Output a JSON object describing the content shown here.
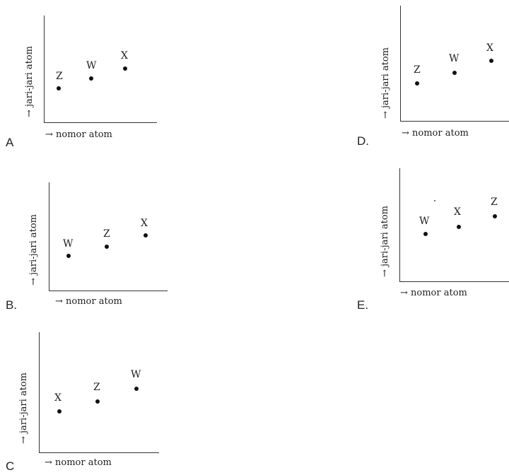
{
  "x_axis_label": "→ nomor atom",
  "y_axis_label": "→ jari-jari atom",
  "panels": [
    {
      "id": "A",
      "letter": "A",
      "points": [
        {
          "label": "Z"
        },
        {
          "label": "W"
        },
        {
          "label": "X"
        }
      ]
    },
    {
      "id": "B",
      "letter": "B.",
      "points": [
        {
          "label": "W"
        },
        {
          "label": "Z"
        },
        {
          "label": "X"
        }
      ]
    },
    {
      "id": "C",
      "letter": "C",
      "points": [
        {
          "label": "X"
        },
        {
          "label": "Z"
        },
        {
          "label": "W"
        }
      ]
    },
    {
      "id": "D",
      "letter": "D.",
      "points": [
        {
          "label": "Z"
        },
        {
          "label": "W"
        },
        {
          "label": "X"
        }
      ]
    },
    {
      "id": "E",
      "letter": "E.",
      "points": [
        {
          "label": "W"
        },
        {
          "label": "X"
        },
        {
          "label": "Z"
        }
      ]
    }
  ]
}
